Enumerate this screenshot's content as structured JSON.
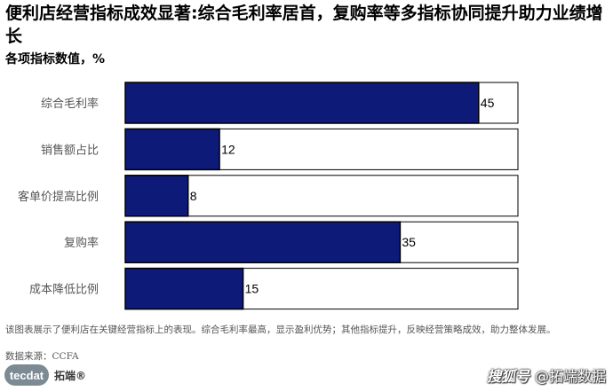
{
  "title": "便利店经营指标成效显著:综合毛利率居首，复购率等多指标协同提升助力业绩增长",
  "subtitle": "各项指标数值，%",
  "chart_data": {
    "type": "bar",
    "orientation": "horizontal",
    "categories": [
      "综合毛利率",
      "销售额占比",
      "客单价提高比例",
      "复购率",
      "成本降低比例"
    ],
    "values": [
      45,
      12,
      8,
      35,
      15
    ],
    "xlim": [
      0,
      50
    ],
    "bar_color": "#0d1a78",
    "background_bar_color": "#ffffff",
    "grid": false
  },
  "note": "该图表展示了便利店在关键经营指标上的表现。综合毛利率最高，显示盈利优势；其他指标提升，反映经营策略成效，助力整体发展。",
  "source": "数据来源：CCFA",
  "brand": {
    "logo_text": "tecdat",
    "name": "拓端®"
  },
  "watermark": {
    "mark": "搜狐号",
    "text": "@拓端数据"
  }
}
